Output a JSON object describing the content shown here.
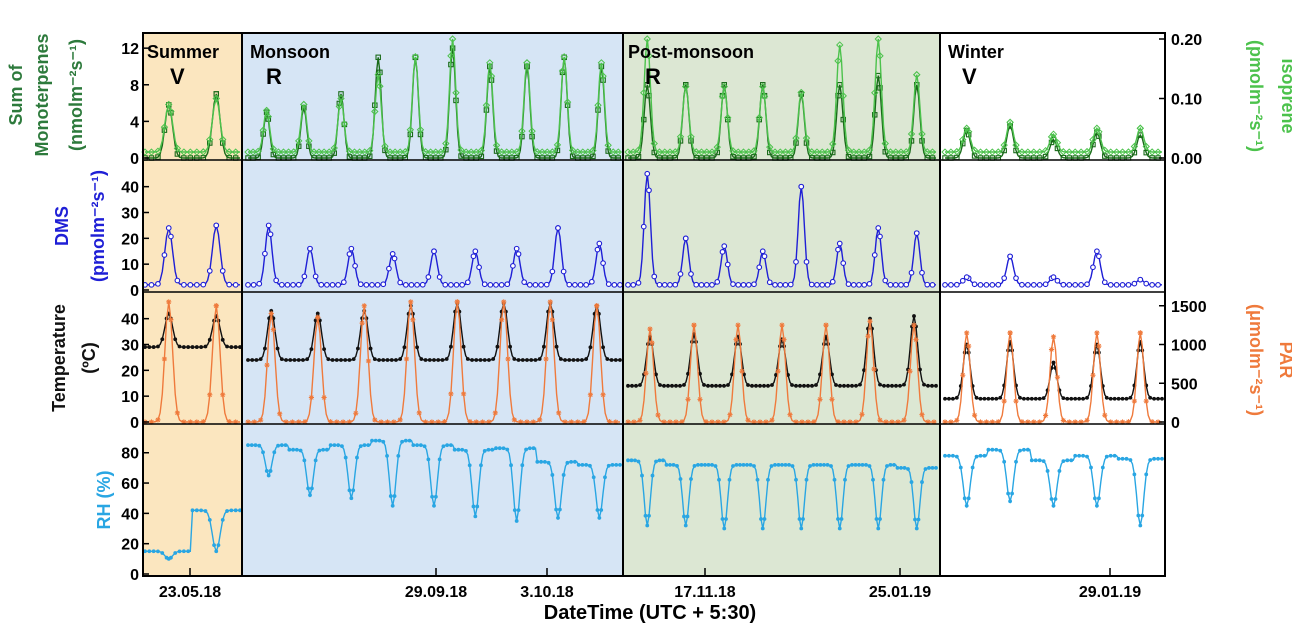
{
  "chart_data": {
    "type": "line",
    "xlabel": "DateTime (UTC + 5:30)",
    "seasons": [
      {
        "name": "Summer",
        "type_mark": "V",
        "color": "#fbe6bf"
      },
      {
        "name": "Monsoon",
        "type_mark": "R",
        "color": "#d6e5f5"
      },
      {
        "name": "Post-monsoon",
        "type_mark": "R",
        "color": "#dce7d3"
      },
      {
        "name": "Winter",
        "type_mark": "V",
        "color": "#ffffff"
      }
    ],
    "x_tick_labels": [
      "23.05.18",
      "29.09.18",
      "3.10.18",
      "17.11.18",
      "25.01.19",
      "29.01.19"
    ],
    "panels": [
      {
        "left_label": [
          "Sum of",
          "Monoterpenes",
          "(nmolm⁻²s⁻¹)"
        ],
        "left_ticks": [
          "0",
          "4",
          "8",
          "12"
        ],
        "ylim_left": [
          0,
          13
        ],
        "right_label": [
          "Isoprene",
          "(pmolm⁻²s⁻¹)"
        ],
        "right_ticks": [
          "0.00",
          "0.10",
          "0.20"
        ],
        "ylim_right": [
          0,
          0.2
        ],
        "series": [
          {
            "name": "Sum of Monoterpenes",
            "axis": "left",
            "color": "#1a6b1a",
            "marker": "square",
            "peaks_by_season": [
              [
                5.8,
                7.0
              ],
              [
                5.0,
                5.5,
                7.0,
                11.0,
                11.0,
                12.0,
                10.0,
                10.0,
                11.0,
                10.0
              ],
              [
                8.0,
                8.0,
                8.0,
                8.0,
                7.0,
                8.0,
                9.0,
                8.0
              ],
              [
                3.0,
                3.5,
                2.0,
                2.8,
                2.5
              ]
            ],
            "baseline": 0
          },
          {
            "name": "Isoprene",
            "axis": "right",
            "color": "#4cc24c",
            "marker": "diamond",
            "peaks_by_season": [
              [
                0.09,
                0.1
              ],
              [
                0.08,
                0.09,
                0.1,
                0.14,
                0.17,
                0.2,
                0.16,
                0.16,
                0.17,
                0.16
              ],
              [
                0.2,
                0.12,
                0.12,
                0.12,
                0.11,
                0.19,
                0.2,
                0.14
              ],
              [
                0.05,
                0.06,
                0.04,
                0.05,
                0.05
              ]
            ],
            "baseline": 0.01
          }
        ]
      },
      {
        "left_label": [
          "DMS",
          "(pmolm⁻²s⁻¹)"
        ],
        "left_ticks": [
          "0",
          "10",
          "20",
          "30",
          "40"
        ],
        "ylim_left": [
          0,
          48
        ],
        "series": [
          {
            "name": "DMS",
            "axis": "left",
            "color": "#1f1fd6",
            "marker": "circle",
            "peaks_by_season": [
              [
                24,
                25
              ],
              [
                25,
                16,
                16,
                14,
                15,
                15,
                16,
                24,
                18
              ],
              [
                45,
                20,
                17,
                15,
                40,
                18,
                24,
                22
              ],
              [
                5,
                13,
                5,
                15,
                4
              ]
            ],
            "baseline": 2
          }
        ]
      },
      {
        "left_label": [
          "Temperature",
          "(ºC)"
        ],
        "left_ticks": [
          "0",
          "10",
          "20",
          "30",
          "40"
        ],
        "ylim_left": [
          0,
          48
        ],
        "right_label": [
          "PAR",
          "(μmolm⁻²s⁻¹)"
        ],
        "right_ticks": [
          "0",
          "500",
          "1000",
          "1500"
        ],
        "ylim_right": [
          0,
          1600
        ],
        "series": [
          {
            "name": "Temperature",
            "axis": "left",
            "color": "#111111",
            "marker": "dot",
            "peaks_by_season": [
              [
                42,
                41
              ],
              [
                43,
                42,
                43,
                45,
                46,
                46,
                46,
                45
              ],
              [
                33,
                34,
                33,
                32,
                33,
                40,
                41
              ],
              [
                30,
                31,
                23,
                30,
                31
              ]
            ],
            "baseline_by_season": [
              29,
              24,
              14,
              9
            ]
          },
          {
            "name": "PAR",
            "axis": "right",
            "color": "#ef7a3c",
            "marker": "asterisk",
            "peaks_by_season": [
              [
                1550,
                1500
              ],
              [
                1400,
                1350,
                1500,
                1550,
                1550,
                1550,
                1550,
                1500
              ],
              [
                1200,
                1250,
                1250,
                1250,
                1250,
                1300,
                1250
              ],
              [
                1150,
                1150,
                1100,
                1150,
                1150
              ]
            ],
            "baseline": 0
          }
        ]
      },
      {
        "left_label": [
          "RH (%)"
        ],
        "left_ticks": [
          "0",
          "20",
          "40",
          "60",
          "80"
        ],
        "ylim_left": [
          0,
          95
        ],
        "series": [
          {
            "name": "RH",
            "axis": "left",
            "color": "#29a6e3",
            "marker": "dot",
            "peaks_by_season": [
              [
                15,
                42
              ],
              [
                85,
                82,
                85,
                88,
                85,
                82,
                83,
                74,
                72
              ],
              [
                75,
                72,
                72,
                72,
                72,
                72,
                72,
                70
              ],
              [
                78,
                82,
                75,
                78,
                76
              ]
            ],
            "troughs_by_season": [
              [
                10,
                15
              ],
              [
                65,
                52,
                50,
                45,
                45,
                38,
                35,
                37
              ],
              [
                32,
                32,
                30,
                30,
                30,
                30,
                30
              ],
              [
                45,
                48,
                45,
                45,
                32
              ]
            ]
          }
        ]
      }
    ]
  }
}
